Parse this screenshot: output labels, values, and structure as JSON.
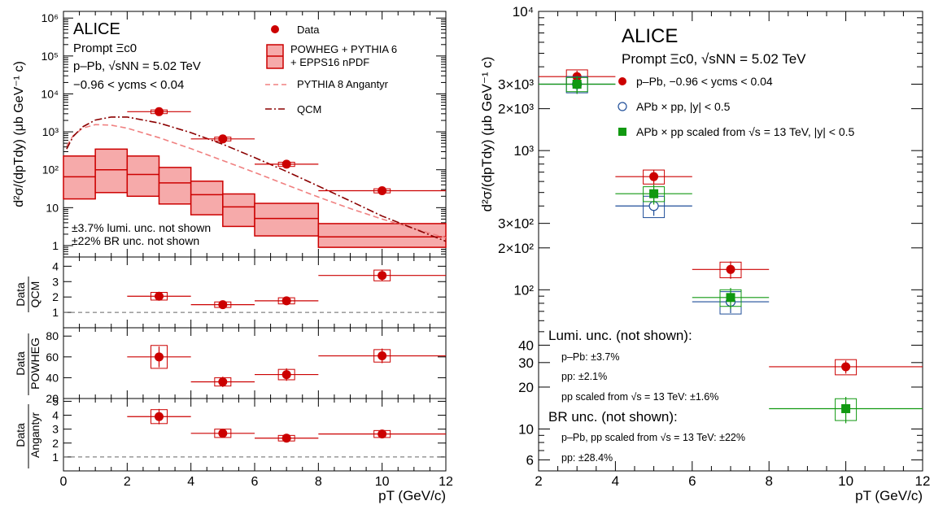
{
  "colors": {
    "red": "#cc0000",
    "dark_red": "#8b0000",
    "pink": "#f08080",
    "green": "#119911",
    "blue": "#1f4e99",
    "gray": "#666666",
    "band_fill": "#f6aaaa"
  },
  "left": {
    "experiment": "ALICE",
    "particle": "Prompt Ξc0",
    "system": "p–Pb, √sNN = 5.02 TeV",
    "rapidity": "−0.96 < ycms < 0.04",
    "ylabel": "d²σ/(dpTdy) (μb GeV⁻¹ c)",
    "xlabel": "pT (GeV/c)",
    "note_lumi": "±3.7% lumi. unc. not shown",
    "note_br": "±22% BR unc. not shown",
    "legend": {
      "data": "Data",
      "powheg_1": "POWHEG + PYTHIA 6",
      "powheg_2": "+ EPPS16 nPDF",
      "pythia": "PYTHIA 8 Angantyr",
      "qcm": "QCM"
    },
    "ratio_labels": {
      "qcm_num": "Data",
      "qcm_den": "QCM",
      "powheg_num": "Data",
      "powheg_den": "POWHEG",
      "ang_num": "Data",
      "ang_den": "Angantyr"
    }
  },
  "right": {
    "experiment": "ALICE",
    "particle": "Prompt Ξc0, √sNN = 5.02 TeV",
    "ylabel": "d²σ/(dpTdy) (μb GeV⁻¹ c)",
    "xlabel": "pT (GeV/c)",
    "legend": {
      "ppb": "p–Pb, −0.96 < ycms < 0.04",
      "pp": "APb × pp, |y| < 0.5",
      "pp13": "APb × pp scaled from √s = 13 TeV, |y| < 0.5"
    },
    "lumi_title": "Lumi. unc. (not shown):",
    "lumi_lines": [
      "p–Pb: ±3.7%",
      "pp: ±2.1%",
      "pp scaled from √s = 13 TeV: ±1.6%"
    ],
    "br_title": "BR unc. (not shown):",
    "br_lines": [
      "p–Pb, pp scaled from √s = 13 TeV: ±22%",
      "pp: ±28.4%"
    ]
  },
  "chart_data": [
    {
      "type": "scatter",
      "panel": "left-main",
      "yscale": "log",
      "xlim": [
        0,
        12
      ],
      "ylim": [
        0.5,
        1500000
      ],
      "x_ticks": [
        0,
        2,
        4,
        6,
        8,
        10,
        12
      ],
      "y_ticks": [
        {
          "v": 1,
          "label": "1"
        },
        {
          "v": 10,
          "label": "10"
        },
        {
          "v": 100,
          "label": "10²"
        },
        {
          "v": 1000,
          "label": "10³"
        },
        {
          "v": 10000,
          "label": "10⁴"
        },
        {
          "v": 100000,
          "label": "10⁵"
        },
        {
          "v": 1000000,
          "label": "10⁶"
        }
      ],
      "data": {
        "x": [
          3,
          5,
          7,
          10
        ],
        "xerr": [
          1,
          1,
          1,
          2
        ],
        "y": [
          3400,
          650,
          140,
          28
        ],
        "ystat": [
          350,
          70,
          20,
          3
        ],
        "ysys": [
          380,
          75,
          18,
          3.5
        ]
      },
      "powheg_band": {
        "edges": [
          0,
          1,
          2,
          3,
          4,
          5,
          6,
          8,
          12
        ],
        "central": [
          65,
          100,
          75,
          45,
          22,
          10.5,
          5.2,
          1.7
        ],
        "low": [
          17,
          25,
          20,
          12.5,
          6.5,
          3.2,
          1.8,
          0.9
        ],
        "high": [
          230,
          350,
          230,
          115,
          50,
          23,
          13,
          3.8
        ]
      },
      "pythia": {
        "x": [
          0.1,
          0.3,
          0.6,
          1,
          1.5,
          2,
          3,
          4,
          5,
          6,
          7,
          8,
          9,
          10,
          11,
          12
        ],
        "y": [
          420,
          780,
          1250,
          1550,
          1500,
          1250,
          700,
          360,
          175,
          85,
          40,
          19,
          9.5,
          5,
          2.8,
          1.6
        ]
      },
      "qcm": {
        "x": [
          0.1,
          0.3,
          0.6,
          1,
          1.5,
          2,
          3,
          4,
          5,
          6,
          7,
          8,
          9,
          10,
          11,
          12
        ],
        "y": [
          350,
          750,
          1350,
          2050,
          2450,
          2450,
          1700,
          950,
          470,
          210,
          90,
          37,
          15,
          6,
          2.8,
          1.3
        ]
      }
    },
    {
      "type": "scatter",
      "panel": "ratio-qcm",
      "xlim": [
        0,
        12
      ],
      "ylim": [
        0,
        4.6
      ],
      "y_ticks": [
        1,
        2,
        3,
        4
      ],
      "ref_line": 1,
      "x": [
        3,
        5,
        7,
        10
      ],
      "xerr": [
        1,
        1,
        1,
        2
      ],
      "y": [
        2.05,
        1.5,
        1.75,
        3.4
      ],
      "ystat": [
        0.25,
        0.2,
        0.2,
        0.35
      ],
      "ysys": [
        0.25,
        0.18,
        0.2,
        0.35
      ]
    },
    {
      "type": "scatter",
      "panel": "ratio-powheg",
      "xlim": [
        0,
        12
      ],
      "ylim": [
        20,
        88
      ],
      "y_ticks": [
        20,
        40,
        60,
        80
      ],
      "x": [
        3,
        5,
        7,
        10
      ],
      "xerr": [
        1,
        1,
        1,
        2
      ],
      "y": [
        60,
        36,
        43,
        61
      ],
      "ystat": [
        10,
        5,
        6,
        7
      ],
      "ysys": [
        11,
        4,
        5,
        6
      ]
    },
    {
      "type": "scatter",
      "panel": "ratio-angantyr",
      "xlim": [
        0,
        12
      ],
      "ylim": [
        0,
        5.2
      ],
      "y_ticks": [
        1,
        2,
        3,
        4,
        5
      ],
      "ref_line": 1,
      "x": [
        3,
        5,
        7,
        10
      ],
      "xerr": [
        1,
        1,
        1,
        2
      ],
      "y": [
        3.9,
        2.7,
        2.35,
        2.65
      ],
      "ystat": [
        0.55,
        0.3,
        0.25,
        0.3
      ],
      "ysys": [
        0.5,
        0.3,
        0.2,
        0.25
      ]
    },
    {
      "type": "scatter",
      "panel": "right",
      "yscale": "log",
      "xlim": [
        2,
        12
      ],
      "ylim": [
        5,
        10000
      ],
      "x_ticks": [
        2,
        4,
        6,
        8,
        10,
        12
      ],
      "y_ticks": [
        {
          "v": 6,
          "label": "6"
        },
        {
          "v": 10,
          "label": "10"
        },
        {
          "v": 20,
          "label": "20"
        },
        {
          "v": 30,
          "label": "30"
        },
        {
          "v": 40,
          "label": "40"
        },
        {
          "v": 100,
          "label": "10²"
        },
        {
          "v": 200,
          "label": "2×10²"
        },
        {
          "v": 300,
          "label": "3×10²"
        },
        {
          "v": 1000,
          "label": "10³"
        },
        {
          "v": 2000,
          "label": "2×10³"
        },
        {
          "v": 3000,
          "label": "3×10³"
        },
        {
          "v": 10000,
          "label": "10⁴"
        }
      ],
      "series": [
        {
          "name": "p–Pb, −0.96 < ycms < 0.04",
          "marker": "circle-filled",
          "x": [
            3,
            5,
            7,
            10
          ],
          "xerr": [
            1,
            1,
            1,
            2
          ],
          "y": [
            3400,
            650,
            140,
            28
          ],
          "ystat": [
            350,
            75,
            20,
            3
          ],
          "ysys": [
            400,
            75,
            18,
            3.5
          ]
        },
        {
          "name": "APb × pp, |y| < 0.5",
          "marker": "circle-open",
          "x": [
            3,
            5,
            7
          ],
          "xerr": [
            1,
            1,
            1
          ],
          "y": [
            3000,
            400,
            82
          ],
          "ystat": [
            400,
            60,
            14
          ],
          "ysys": [
            400,
            70,
            15
          ]
        },
        {
          "name": "APb × pp scaled from √s = 13 TeV, |y| < 0.5",
          "marker": "square-filled",
          "x": [
            3,
            5,
            7,
            10
          ],
          "xerr": [
            1,
            1,
            1,
            2
          ],
          "y": [
            3000,
            490,
            88,
            14
          ],
          "ystat": [
            450,
            80,
            15,
            3
          ],
          "ysys": [
            350,
            60,
            12,
            2.5
          ]
        }
      ]
    }
  ]
}
